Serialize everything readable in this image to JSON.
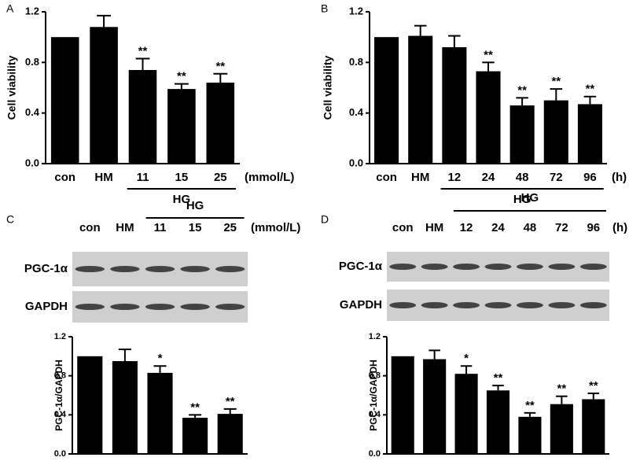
{
  "chart_data": [
    {
      "type": "bar",
      "panel": "A",
      "ylabel": "Cell viability",
      "color": "#000000",
      "categories": [
        "con",
        "HM",
        "11",
        "15",
        "25"
      ],
      "values": [
        1.0,
        1.08,
        0.74,
        0.59,
        0.64
      ],
      "errors": [
        null,
        0.09,
        0.09,
        0.04,
        0.07
      ],
      "significance": [
        null,
        null,
        "**",
        "**",
        "**"
      ],
      "group_label": "HG",
      "unit": "(mmol/L)",
      "ylim": [
        0,
        1.2
      ],
      "yticks": [
        {
          "value": 0,
          "label": "0.0"
        },
        0.4,
        0.8,
        1.2
      ]
    },
    {
      "type": "bar",
      "panel": "B",
      "ylabel": "Cell viability",
      "color": "#000000",
      "categories": [
        "con",
        "HM",
        "12",
        "24",
        "48",
        "72",
        "96"
      ],
      "values": [
        1.0,
        1.01,
        0.92,
        0.73,
        0.46,
        0.5,
        0.47
      ],
      "errors": [
        null,
        0.08,
        0.09,
        0.07,
        0.06,
        0.09,
        0.06
      ],
      "significance": [
        null,
        null,
        null,
        "**",
        "**",
        "**",
        "**"
      ],
      "group_label": "HG",
      "unit": "(h)",
      "ylim": [
        0,
        1.2
      ],
      "yticks": [
        {
          "value": 0,
          "label": "0.0"
        },
        0.4,
        0.8,
        1.2
      ]
    },
    {
      "type": "bar",
      "panel": "C",
      "ylabel": "PGC-1α/GAPDH",
      "color": "#000000",
      "blot_rows": [
        "PGC-1α",
        "GAPDH"
      ],
      "categories": [
        "con",
        "HM",
        "11",
        "15",
        "25"
      ],
      "values": [
        1.0,
        0.95,
        0.83,
        0.37,
        0.41
      ],
      "errors": [
        null,
        0.12,
        0.07,
        0.03,
        0.05
      ],
      "significance": [
        null,
        null,
        "*",
        "**",
        "**"
      ],
      "group_label": "HG",
      "unit": "(mmol/L)",
      "ylim": [
        0,
        1.2
      ],
      "yticks": [
        {
          "value": 0,
          "label": "0.0"
        },
        0.4,
        0.8,
        1.2
      ]
    },
    {
      "type": "bar",
      "panel": "D",
      "ylabel": "PGC-1α/GAPDH",
      "color": "#000000",
      "blot_rows": [
        "PGC-1α",
        "GAPDH"
      ],
      "categories": [
        "con",
        "HM",
        "12",
        "24",
        "48",
        "72",
        "96"
      ],
      "values": [
        1.0,
        0.97,
        0.82,
        0.65,
        0.38,
        0.51,
        0.56
      ],
      "errors": [
        null,
        0.09,
        0.08,
        0.05,
        0.04,
        0.08,
        0.06
      ],
      "significance": [
        null,
        null,
        "*",
        "**",
        "**",
        "**",
        "**"
      ],
      "group_label": "HG",
      "unit": "(h)",
      "ylim": [
        0,
        1.2
      ],
      "yticks": [
        {
          "value": 0,
          "label": "0.0"
        },
        0.4,
        0.8,
        1.2
      ]
    }
  ]
}
